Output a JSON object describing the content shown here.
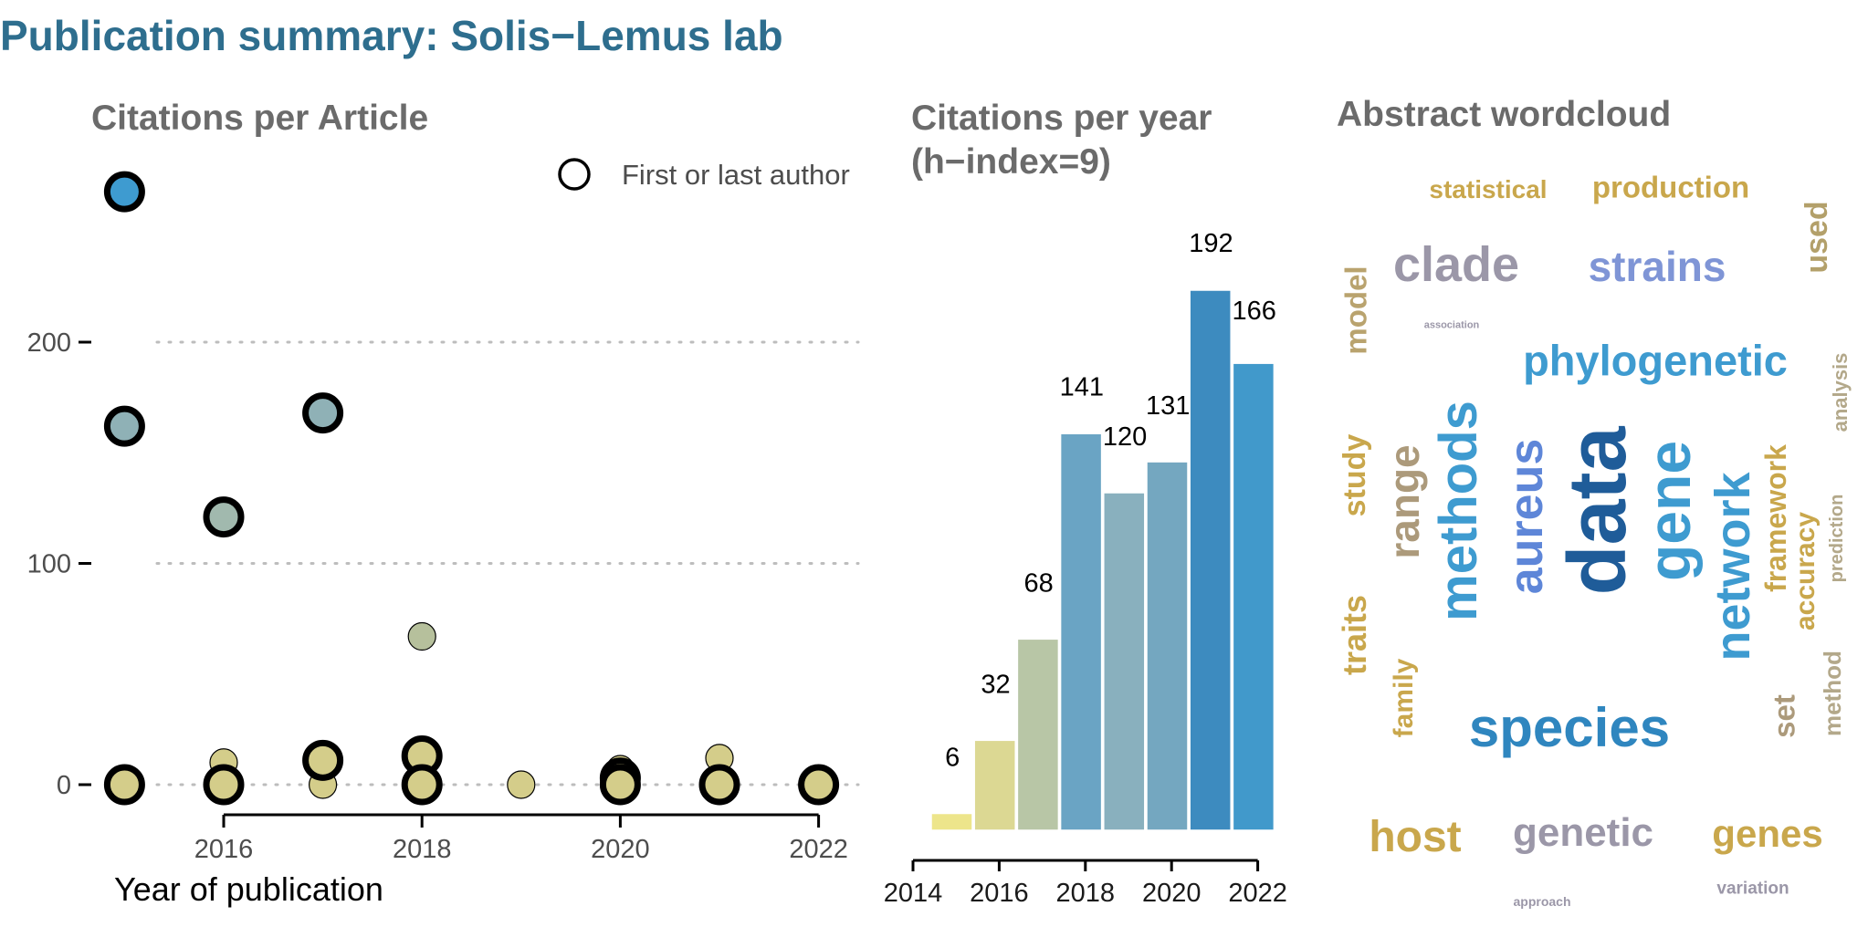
{
  "title": "Publication summary: Solis−Lemus lab",
  "chart_data": [
    {
      "type": "scatter",
      "title": "Citations per Article",
      "xlabel": "Year of publication",
      "ylabel": "",
      "xlim": [
        2014.8,
        2022.4
      ],
      "ylim": [
        -10,
        285
      ],
      "xticks": [
        "2016",
        "2018",
        "2020",
        "2022"
      ],
      "xtick_values": [
        2016,
        2018,
        2020,
        2022
      ],
      "yticks": [
        "0",
        "100",
        "200"
      ],
      "ytick_values": [
        0,
        100,
        200
      ],
      "grid": "horizontal dotted",
      "legend": {
        "label": "First or last author",
        "placement": "top-right"
      },
      "points": [
        {
          "x": 2015,
          "y": 268,
          "first_or_last": true,
          "color": "#3e9bd0"
        },
        {
          "x": 2015,
          "y": 162,
          "first_or_last": true,
          "color": "#8fb1b6"
        },
        {
          "x": 2015,
          "y": 0,
          "first_or_last": true,
          "color": "#d4cd8a"
        },
        {
          "x": 2016,
          "y": 121,
          "first_or_last": true,
          "color": "#a1b9ae"
        },
        {
          "x": 2016,
          "y": 10,
          "first_or_last": false,
          "color": "#d4cd8a"
        },
        {
          "x": 2016,
          "y": 0,
          "first_or_last": true,
          "color": "#d4cd8a"
        },
        {
          "x": 2017,
          "y": 168,
          "first_or_last": true,
          "color": "#8fb1b6"
        },
        {
          "x": 2017,
          "y": 11,
          "first_or_last": true,
          "color": "#d4cd8a"
        },
        {
          "x": 2017,
          "y": 0,
          "first_or_last": false,
          "color": "#d4cd8a"
        },
        {
          "x": 2018,
          "y": 67,
          "first_or_last": false,
          "color": "#b6c09c"
        },
        {
          "x": 2018,
          "y": 13,
          "first_or_last": true,
          "color": "#d4cd8a"
        },
        {
          "x": 2018,
          "y": 0,
          "first_or_last": true,
          "color": "#d4cd8a"
        },
        {
          "x": 2019,
          "y": 0,
          "first_or_last": false,
          "color": "#d4cd8a"
        },
        {
          "x": 2020,
          "y": 7,
          "first_or_last": false,
          "color": "#d4cd8a"
        },
        {
          "x": 2020,
          "y": 3,
          "first_or_last": true,
          "color": "#d4cd8a"
        },
        {
          "x": 2020,
          "y": 0,
          "first_or_last": true,
          "color": "#d4cd8a"
        },
        {
          "x": 2021,
          "y": 12,
          "first_or_last": false,
          "color": "#d4cd8a"
        },
        {
          "x": 2021,
          "y": 0,
          "first_or_last": true,
          "color": "#d4cd8a"
        },
        {
          "x": 2022,
          "y": 0,
          "first_or_last": true,
          "color": "#d4cd8a"
        }
      ]
    },
    {
      "type": "bar",
      "title": "Citations per year",
      "subtitle": "(h−index=9)",
      "xlabel": "",
      "ylabel": "",
      "categories": [
        "2015",
        "2016",
        "2017",
        "2018",
        "2019",
        "2020",
        "2021",
        "2022"
      ],
      "values": [
        6,
        32,
        68,
        141,
        120,
        131,
        192,
        166
      ],
      "value_labels": [
        "6",
        "32",
        "68",
        "141",
        "120",
        "131",
        "192",
        "166"
      ],
      "colors": [
        "#ede58b",
        "#dcd893",
        "#b8c6a6",
        "#6aa4c4",
        "#89b0be",
        "#74a7c0",
        "#3d8bbf",
        "#4199cb"
      ],
      "xticks": [
        "2014",
        "2016",
        "2018",
        "2020",
        "2022"
      ],
      "xtick_values": [
        2014,
        2016,
        2018,
        2020,
        2022
      ],
      "ylim": [
        0,
        192
      ]
    },
    {
      "type": "wordcloud",
      "title": "Abstract wordcloud",
      "words": [
        {
          "text": "statistical",
          "color": "#c9a74c",
          "vertical": false
        },
        {
          "text": "production",
          "color": "#c9a74c",
          "vertical": false
        },
        {
          "text": "used",
          "color": "#b3a06a",
          "vertical": true
        },
        {
          "text": "clade",
          "color": "#9b97a8",
          "vertical": false
        },
        {
          "text": "strains",
          "color": "#7f95d6",
          "vertical": false
        },
        {
          "text": "model",
          "color": "#b9a36e",
          "vertical": true
        },
        {
          "text": "association",
          "color": "#9b97a8",
          "vertical": false
        },
        {
          "text": "phylogenetic",
          "color": "#3e9bd0",
          "vertical": false
        },
        {
          "text": "analysis",
          "color": "#b3a88a",
          "vertical": true
        },
        {
          "text": "study",
          "color": "#c9a74c",
          "vertical": true
        },
        {
          "text": "range",
          "color": "#ac9a7b",
          "vertical": true
        },
        {
          "text": "methods",
          "color": "#3e9bd0",
          "vertical": true
        },
        {
          "text": "aureus",
          "color": "#5e86d8",
          "vertical": true
        },
        {
          "text": "data",
          "color": "#1f5c99",
          "vertical": true
        },
        {
          "text": "gene",
          "color": "#3e9bd0",
          "vertical": true
        },
        {
          "text": "network",
          "color": "#3e9bd0",
          "vertical": true
        },
        {
          "text": "framework",
          "color": "#c9a74c",
          "vertical": true
        },
        {
          "text": "accuracy",
          "color": "#c9a74c",
          "vertical": true
        },
        {
          "text": "prediction",
          "color": "#b3a88a",
          "vertical": true
        },
        {
          "text": "traits",
          "color": "#c9a74c",
          "vertical": true
        },
        {
          "text": "family",
          "color": "#c9a74c",
          "vertical": true
        },
        {
          "text": "species",
          "color": "#2f86bf",
          "vertical": false
        },
        {
          "text": "set",
          "color": "#ac9a7b",
          "vertical": true
        },
        {
          "text": "method",
          "color": "#b3a88a",
          "vertical": true
        },
        {
          "text": "host",
          "color": "#c9a74c",
          "vertical": false
        },
        {
          "text": "genetic",
          "color": "#9b97a8",
          "vertical": false
        },
        {
          "text": "genes",
          "color": "#c9a74c",
          "vertical": false
        },
        {
          "text": "approach",
          "color": "#9b97a8",
          "vertical": false
        },
        {
          "text": "variation",
          "color": "#9b97a8",
          "vertical": false
        }
      ]
    }
  ]
}
